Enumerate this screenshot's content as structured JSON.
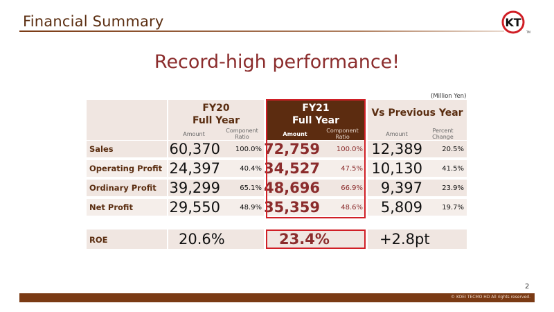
{
  "header": {
    "title": "Financial Summary"
  },
  "logo": {
    "text": "KT",
    "tm": "TM"
  },
  "headline": "Record-high performance!",
  "unit_note": "(Million Yen)",
  "columns": {
    "fy20": {
      "line1": "FY20",
      "line2": "Full Year",
      "amount": "Amount",
      "ratio": "Component Ratio"
    },
    "fy21": {
      "line1": "FY21",
      "line2": "Full Year",
      "amount": "Amount",
      "ratio": "Component Ratio"
    },
    "vs": {
      "line1": "Vs Previous Year",
      "amount": "Amount",
      "change": "Percent Change"
    }
  },
  "rows": [
    {
      "label": "Sales",
      "fy20": "60,370",
      "fy20_ratio": "100.0%",
      "fy21": "72,759",
      "fy21_ratio": "100.0%",
      "vs": "12,389",
      "vs_pct": "20.5%"
    },
    {
      "label": "Operating Profit",
      "fy20": "24,397",
      "fy20_ratio": "40.4%",
      "fy21": "34,527",
      "fy21_ratio": "47.5%",
      "vs": "10,130",
      "vs_pct": "41.5%"
    },
    {
      "label": "Ordinary Profit",
      "fy20": "39,299",
      "fy20_ratio": "65.1%",
      "fy21": "48,696",
      "fy21_ratio": "66.9%",
      "vs": "9,397",
      "vs_pct": "23.9%"
    },
    {
      "label": "Net Profit",
      "fy20": "29,550",
      "fy20_ratio": "48.9%",
      "fy21": "35,359",
      "fy21_ratio": "48.6%",
      "vs": "5,809",
      "vs_pct": "19.7%"
    }
  ],
  "roe": {
    "label": "ROE",
    "fy20": "20.6%",
    "fy21": "23.4%",
    "vs": "+2.8pt"
  },
  "colors": {
    "brand_brown": "#5c2c10",
    "accent_red": "#d01f26",
    "value_red": "#8b2c2c",
    "row_bg": "#f0e6e1"
  },
  "footer": {
    "page": "2",
    "copyright": "© KOEI TECMO HD All rights reserved."
  }
}
